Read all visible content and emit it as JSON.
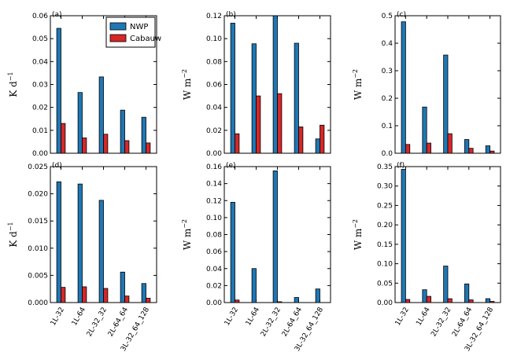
{
  "colors": {
    "nwp": "#1f77b4",
    "cabauw": "#d62728",
    "axis": "#000000",
    "bar_edge": "#000000"
  },
  "legend": {
    "entries": [
      "NWP",
      "Cabauw"
    ],
    "placement": "upper-right of panel (a)"
  },
  "chart_data": [
    {
      "panel": "(a)",
      "type": "bar",
      "categories": [
        "1L-32",
        "1L-64",
        "2L-32_32",
        "2L-64_64",
        "3L-32_64_128"
      ],
      "series": [
        {
          "name": "NWP",
          "values": [
            0.0545,
            0.0265,
            0.0333,
            0.0188,
            0.0157
          ]
        },
        {
          "name": "Cabauw",
          "values": [
            0.013,
            0.0067,
            0.0083,
            0.0055,
            0.0045
          ]
        }
      ],
      "ylim": [
        0,
        0.06
      ],
      "yticks": [
        "0.00",
        "0.01",
        "0.02",
        "0.03",
        "0.04",
        "0.05",
        "0.06"
      ],
      "ylabel": "K d−1",
      "ylabel_main": "K d",
      "ylabel_sup": "−1",
      "show_xticks": false
    },
    {
      "panel": "(b)",
      "type": "bar",
      "categories": [
        "1L-32",
        "1L-64",
        "2L-32_32",
        "2L-64_64",
        "3L-32_64_128"
      ],
      "series": [
        {
          "name": "NWP",
          "values": [
            0.1135,
            0.0955,
            0.12,
            0.096,
            0.0125
          ]
        },
        {
          "name": "Cabauw",
          "values": [
            0.017,
            0.05,
            0.052,
            0.023,
            0.0245
          ]
        }
      ],
      "ylim": [
        0,
        0.12
      ],
      "yticks": [
        "0.00",
        "0.02",
        "0.04",
        "0.06",
        "0.08",
        "0.10",
        "0.12"
      ],
      "ylabel": "W m−2",
      "ylabel_main": "W m",
      "ylabel_sup": "−2",
      "show_xticks": false
    },
    {
      "panel": "(c)",
      "type": "bar",
      "categories": [
        "1L-32",
        "1L-64",
        "2L-32_32",
        "2L-64_64",
        "3L-32_64_128"
      ],
      "series": [
        {
          "name": "NWP",
          "values": [
            0.478,
            0.168,
            0.357,
            0.05,
            0.027
          ]
        },
        {
          "name": "Cabauw",
          "values": [
            0.032,
            0.037,
            0.071,
            0.018,
            0.008
          ]
        }
      ],
      "ylim": [
        0,
        0.5
      ],
      "yticks": [
        "0.0",
        "0.1",
        "0.2",
        "0.3",
        "0.4",
        "0.5"
      ],
      "ylabel": "W m−2",
      "ylabel_main": "W m",
      "ylabel_sup": "−2",
      "show_xticks": false
    },
    {
      "panel": "(d)",
      "type": "bar",
      "categories": [
        "1L-32",
        "1L-64",
        "2L-32_32",
        "2L-64_64",
        "3L-32_64_128"
      ],
      "series": [
        {
          "name": "NWP",
          "values": [
            0.0222,
            0.0218,
            0.0188,
            0.0056,
            0.0035
          ]
        },
        {
          "name": "Cabauw",
          "values": [
            0.0028,
            0.0029,
            0.0026,
            0.0012,
            0.0008
          ]
        }
      ],
      "ylim": [
        0,
        0.025
      ],
      "yticks": [
        "0.000",
        "0.005",
        "0.010",
        "0.015",
        "0.020",
        "0.025"
      ],
      "ylabel": "K d−1",
      "ylabel_main": "K d",
      "ylabel_sup": "−1",
      "show_xticks": true
    },
    {
      "panel": "(e)",
      "type": "bar",
      "categories": [
        "1L-32",
        "1L-64",
        "2L-32_32",
        "2L-64_64",
        "3L-32_64_128"
      ],
      "series": [
        {
          "name": "NWP",
          "values": [
            0.118,
            0.04,
            0.155,
            0.006,
            0.016
          ]
        },
        {
          "name": "Cabauw",
          "values": [
            0.003,
            0.0,
            0.001,
            0.0,
            0.0
          ]
        }
      ],
      "ylim": [
        0,
        0.16
      ],
      "yticks": [
        "0.00",
        "0.02",
        "0.04",
        "0.06",
        "0.08",
        "0.10",
        "0.12",
        "0.14",
        "0.16"
      ],
      "ylabel": "W m−2",
      "ylabel_main": "W m",
      "ylabel_sup": "−2",
      "show_xticks": true
    },
    {
      "panel": "(f)",
      "type": "bar",
      "categories": [
        "1L-32",
        "1L-64",
        "2L-32_32",
        "2L-64_64",
        "3L-32_64_128"
      ],
      "series": [
        {
          "name": "NWP",
          "values": [
            0.343,
            0.033,
            0.094,
            0.048,
            0.01
          ]
        },
        {
          "name": "Cabauw",
          "values": [
            0.008,
            0.016,
            0.01,
            0.007,
            0.003
          ]
        }
      ],
      "ylim": [
        0,
        0.35
      ],
      "yticks": [
        "0.00",
        "0.05",
        "0.10",
        "0.15",
        "0.20",
        "0.25",
        "0.30",
        "0.35"
      ],
      "ylabel": "W m−2",
      "ylabel_main": "W m",
      "ylabel_sup": "−2",
      "show_xticks": true
    }
  ]
}
